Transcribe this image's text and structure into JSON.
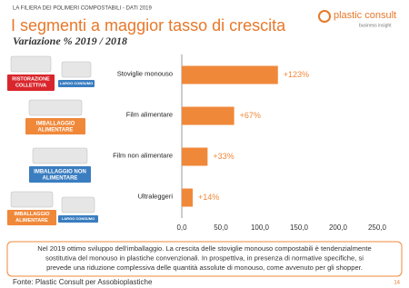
{
  "header": "LA FILIERA DEI POLIMERI COMPOSTABILI - DATI 2019",
  "logo": {
    "name": "plastic consult",
    "tagline": "business insight"
  },
  "icons": [
    [
      "RISTORAZIONE COLLETTIVA",
      "LARGO CONSUMO"
    ],
    [
      "IMBALLAGGIO ALIMENTARE"
    ],
    [
      "IMBALLAGGIO NON ALIMENTARE"
    ],
    [
      "IMBALLAGGIO ALIMENTARE",
      "LARGO CONSUMO"
    ]
  ],
  "note": [
    "Nel 2019 ottimo sviluppo dell'imballaggio. La crescita delle stoviglie monouso compostabili è tendenzialmente",
    "sostitutiva del monouso in plastiche convenzionali. In prospettiva, in presenza di normative specifiche, si",
    "prevede una riduzione complessiva delle quantità assolute di monouso, come avvenuto per gli shopper."
  ],
  "source": "Fonte: Plastic Consult per Assobioplastiche",
  "page_number": "14",
  "chart_data": {
    "type": "bar",
    "orientation": "horizontal",
    "title": "I segmenti a maggior tasso di crescita",
    "subtitle": "Variazione % 2019 / 2018",
    "categories": [
      "Stoviglie monouso",
      "Film  alimentare",
      "Film non alimentare",
      "Ultraleggeri"
    ],
    "values": [
      123,
      67,
      33,
      14
    ],
    "value_labels": [
      "+123%",
      "+67%",
      "+33%",
      "+14%"
    ],
    "color": "#f0883a",
    "xlim": [
      0,
      250
    ],
    "xticks": [
      {
        "value": 0,
        "label": "0,0"
      },
      {
        "value": 50,
        "label": "50,0"
      },
      {
        "value": 100,
        "label": "100,0"
      },
      {
        "value": 150,
        "label": "150,0"
      },
      {
        "value": 200,
        "label": "200,0"
      },
      {
        "value": 250,
        "label": "250,0"
      }
    ]
  }
}
